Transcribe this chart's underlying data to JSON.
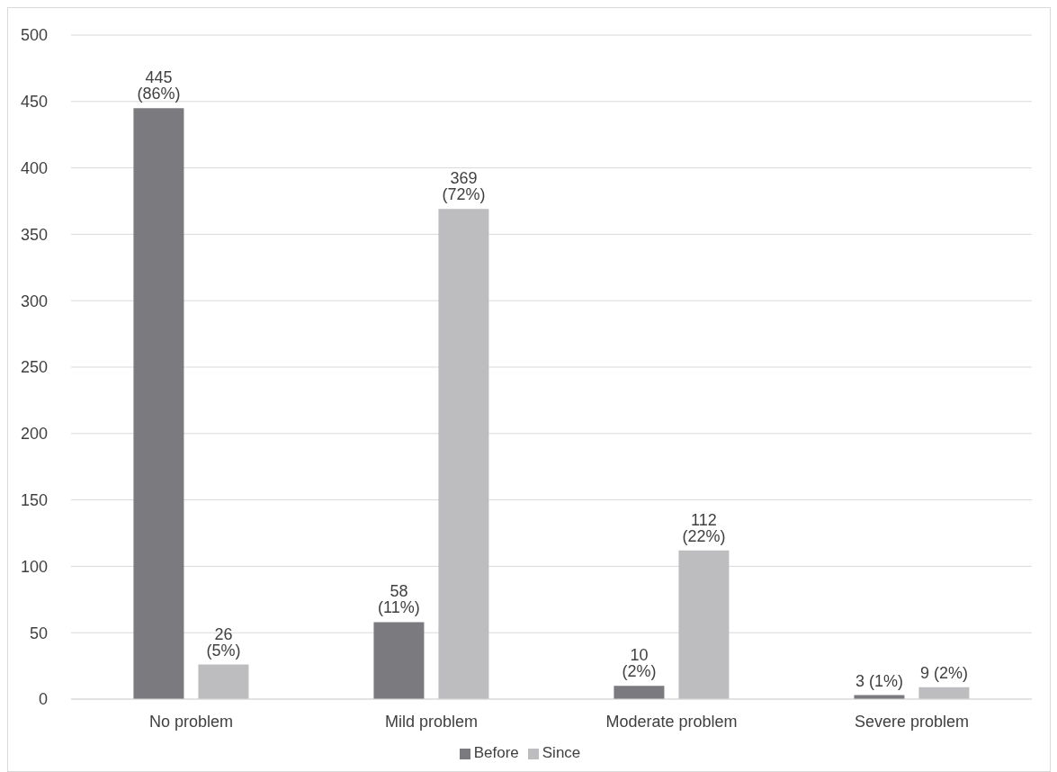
{
  "chart_data": {
    "type": "bar",
    "categories": [
      "No problem",
      "Mild problem",
      "Moderate problem",
      "Severe problem"
    ],
    "series": [
      {
        "name": "Before",
        "color": "#7b7b7f",
        "values": [
          445,
          58,
          10,
          3
        ],
        "value_labels": [
          "445 (86%)",
          "58 (11%)",
          "10 (2%)",
          "3 (1%)"
        ]
      },
      {
        "name": "Since",
        "color": "#bdbdc0",
        "values": [
          26,
          369,
          112,
          9
        ],
        "value_labels": [
          "26 (5%)",
          "369 (72%)",
          "112 (22%)",
          "9 (2%)"
        ]
      }
    ],
    "ylim": [
      0,
      500
    ],
    "yticks": [
      0,
      50,
      100,
      150,
      200,
      250,
      300,
      350,
      400,
      450,
      500
    ],
    "grid": "y",
    "legend": "bottom"
  }
}
